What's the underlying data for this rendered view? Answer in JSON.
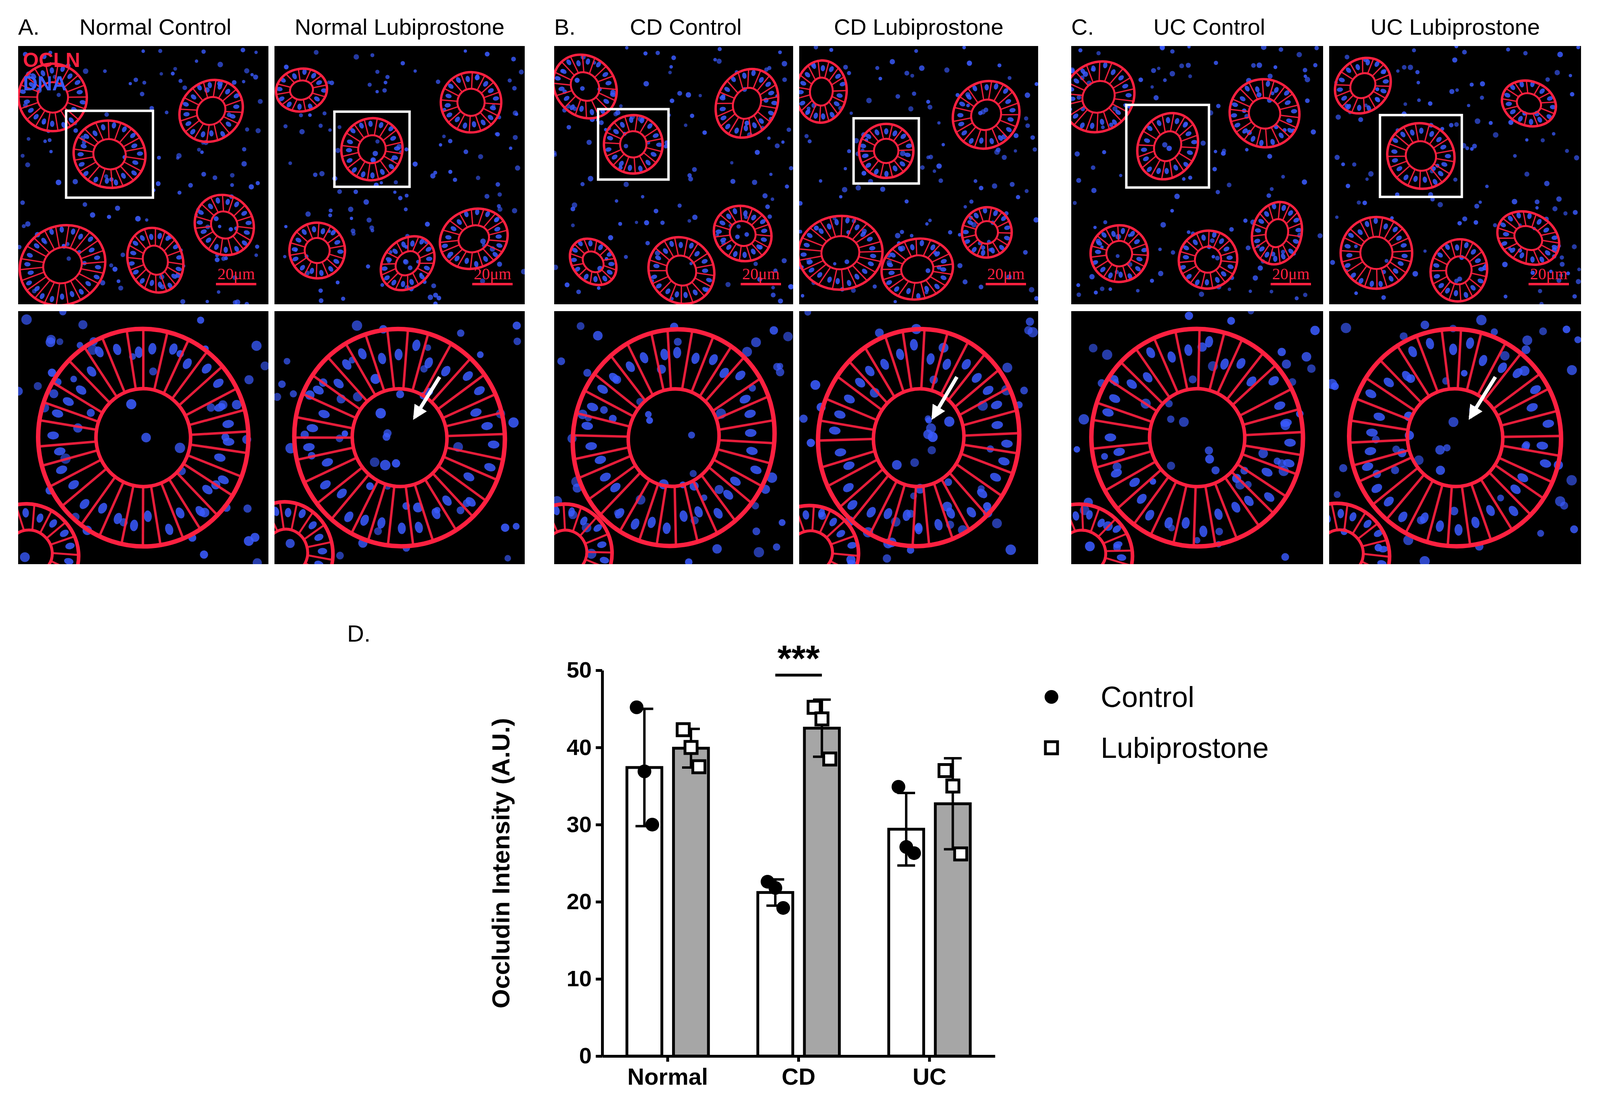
{
  "chart_data": {
    "type": "bar",
    "title": "D.",
    "categories": [
      "Normal",
      "CD",
      "UC"
    ],
    "y_label": "Occludin Intensity (A.U.)",
    "ylim": [
      0,
      50
    ],
    "yticks": [
      0,
      10,
      20,
      30,
      40,
      50
    ],
    "legend": "right",
    "series": [
      {
        "name": "Control",
        "color": "#ffffff",
        "marker": "circle",
        "values": [
          37.4,
          21.2,
          29.4
        ],
        "errors": [
          7.6,
          1.7,
          4.7
        ],
        "points": [
          [
            45.2,
            36.9,
            30.0
          ],
          [
            22.6,
            21.8,
            19.2
          ],
          [
            34.9,
            27.1,
            26.3
          ]
        ]
      },
      {
        "name": "Lubiprostone",
        "color": "#a6a6a6",
        "marker": "square",
        "values": [
          39.9,
          42.5,
          32.7
        ],
        "errors": [
          2.5,
          3.7,
          5.9
        ],
        "points": [
          [
            42.3,
            40.0,
            37.5
          ],
          [
            45.2,
            43.7,
            38.5
          ],
          [
            37.0,
            35.0,
            26.2
          ]
        ]
      }
    ],
    "annotations": [
      {
        "text": "***",
        "x": 1
      }
    ]
  },
  "image_panels": [
    {
      "label": "A.",
      "columns": [
        "Normal Control",
        "Normal Lubiprostone"
      ],
      "scale_bars": [
        "20μm",
        "20μm"
      ]
    },
    {
      "label": "B.",
      "columns": [
        "CD Control",
        "CD Lubiprostone"
      ],
      "scale_bars": [
        "20μm",
        "20μm"
      ]
    },
    {
      "label": "C.",
      "columns": [
        "UC Control",
        "UC Lubiprostone"
      ],
      "scale_bars": [
        "20μm",
        "20μm"
      ]
    }
  ],
  "stain_legend": [
    {
      "text": "OCLN",
      "color": "#ff2040"
    },
    {
      "text": "DNA",
      "color": "#3a5bff"
    }
  ]
}
